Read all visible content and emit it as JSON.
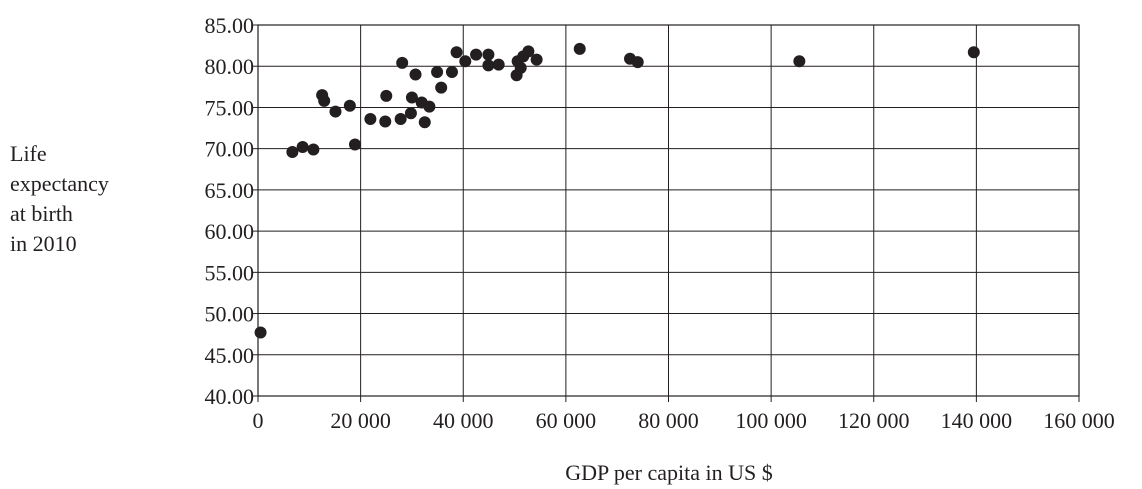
{
  "chart_data": {
    "type": "scatter",
    "title": "",
    "xlabel": "GDP per capita in US $",
    "ylabel_lines": [
      "Life",
      "expectancy",
      "at birth",
      "in 2010"
    ],
    "xlim": [
      0,
      160000
    ],
    "ylim": [
      40,
      85
    ],
    "x_ticks": [
      0,
      20000,
      40000,
      60000,
      80000,
      100000,
      120000,
      140000,
      160000
    ],
    "x_tick_labels": [
      "0",
      "20 000",
      "40 000",
      "60 000",
      "80 000",
      "100 000",
      "120 000",
      "140 000",
      "160 000"
    ],
    "y_ticks": [
      40,
      45,
      50,
      55,
      60,
      65,
      70,
      75,
      80,
      85
    ],
    "y_tick_labels": [
      "40.00",
      "45.00",
      "50.00",
      "55.00",
      "60.00",
      "65.00",
      "70.00",
      "75.00",
      "80.00",
      "85.00"
    ],
    "grid": true,
    "legend": "none",
    "points_color": "#231f20",
    "points": [
      {
        "x": 500,
        "y": 47.7
      },
      {
        "x": 6700,
        "y": 69.6
      },
      {
        "x": 8700,
        "y": 70.2
      },
      {
        "x": 10800,
        "y": 69.9
      },
      {
        "x": 12500,
        "y": 76.5
      },
      {
        "x": 12900,
        "y": 75.8
      },
      {
        "x": 15100,
        "y": 74.5
      },
      {
        "x": 17900,
        "y": 75.2
      },
      {
        "x": 18900,
        "y": 70.5
      },
      {
        "x": 21900,
        "y": 73.6
      },
      {
        "x": 24800,
        "y": 73.3
      },
      {
        "x": 25000,
        "y": 76.4
      },
      {
        "x": 27800,
        "y": 73.6
      },
      {
        "x": 28100,
        "y": 80.4
      },
      {
        "x": 29800,
        "y": 74.3
      },
      {
        "x": 30000,
        "y": 76.2
      },
      {
        "x": 30700,
        "y": 79.0
      },
      {
        "x": 31900,
        "y": 75.6
      },
      {
        "x": 32500,
        "y": 73.2
      },
      {
        "x": 33400,
        "y": 75.1
      },
      {
        "x": 34900,
        "y": 79.3
      },
      {
        "x": 35700,
        "y": 77.4
      },
      {
        "x": 37800,
        "y": 79.3
      },
      {
        "x": 38700,
        "y": 81.7
      },
      {
        "x": 40400,
        "y": 80.6
      },
      {
        "x": 42500,
        "y": 81.4
      },
      {
        "x": 44900,
        "y": 81.4
      },
      {
        "x": 44900,
        "y": 80.1
      },
      {
        "x": 46900,
        "y": 80.2
      },
      {
        "x": 50400,
        "y": 78.9
      },
      {
        "x": 50600,
        "y": 80.6
      },
      {
        "x": 51200,
        "y": 79.8
      },
      {
        "x": 51700,
        "y": 81.2
      },
      {
        "x": 52700,
        "y": 81.8
      },
      {
        "x": 54300,
        "y": 80.8
      },
      {
        "x": 62700,
        "y": 82.1
      },
      {
        "x": 72500,
        "y": 80.9
      },
      {
        "x": 74000,
        "y": 80.5
      },
      {
        "x": 105500,
        "y": 80.6
      },
      {
        "x": 139500,
        "y": 81.7
      }
    ]
  }
}
